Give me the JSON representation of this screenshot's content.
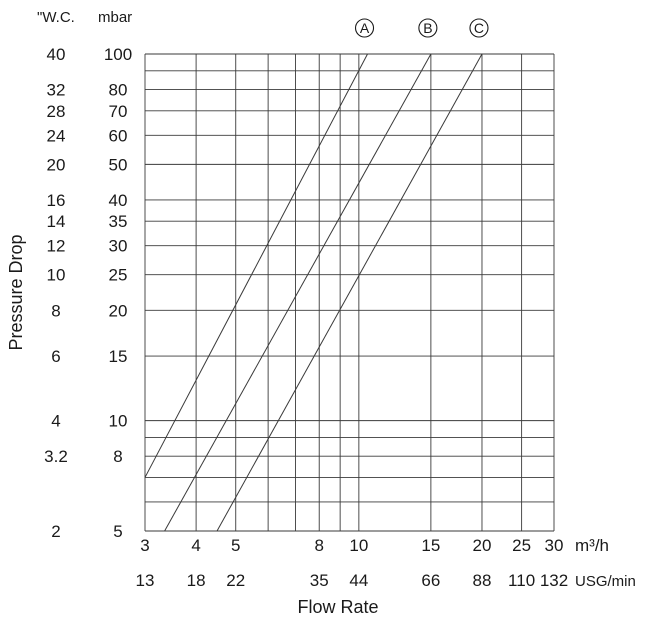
{
  "chart_data": {
    "type": "line",
    "title": "",
    "xlabel": "Flow Rate",
    "ylabel": "Pressure Drop",
    "x_scale": "log",
    "y_scale": "log",
    "xlim": [
      3,
      30
    ],
    "ylim": [
      5,
      100
    ],
    "x_unit_primary": "m³/h",
    "x_unit_secondary": "USG/min",
    "y_unit_primary": "mbar",
    "y_unit_secondary": "\"W.C.",
    "x_ticks": [
      3,
      4,
      5,
      8,
      10,
      15,
      20,
      25,
      30
    ],
    "x_ticks_secondary": [
      13,
      18,
      22,
      35,
      44,
      66,
      88,
      110,
      132
    ],
    "x_gridlines": [
      3,
      4,
      5,
      6,
      7,
      8,
      9,
      10,
      15,
      20,
      25,
      30
    ],
    "y_ticks": [
      5,
      8,
      10,
      15,
      20,
      25,
      30,
      35,
      40,
      50,
      60,
      70,
      80,
      100
    ],
    "y_ticks_secondary": [
      "2",
      "3.2",
      "4",
      "6",
      "8",
      "10",
      "12",
      "14",
      "16",
      "20",
      "24",
      "28",
      "32",
      "40"
    ],
    "y_gridlines": [
      5,
      6,
      7,
      8,
      9,
      10,
      15,
      20,
      25,
      30,
      35,
      40,
      50,
      60,
      70,
      80,
      90,
      100
    ],
    "grid": true,
    "legend": "circled letters above each line at top",
    "series": [
      {
        "name": "A",
        "x": [
          3.0,
          10.5
        ],
        "y": [
          7.0,
          100
        ]
      },
      {
        "name": "B",
        "x": [
          3.35,
          15.0
        ],
        "y": [
          5.0,
          100
        ]
      },
      {
        "name": "C",
        "x": [
          4.5,
          20.0
        ],
        "y": [
          5.0,
          100
        ]
      }
    ]
  }
}
